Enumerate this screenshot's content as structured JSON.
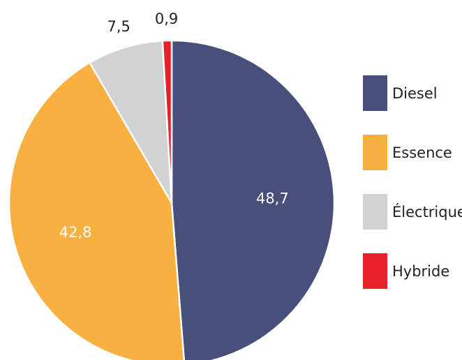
{
  "chart_data": {
    "type": "pie",
    "categories": [
      "Diesel",
      "Essence",
      "Électrique",
      "Hybride"
    ],
    "values": [
      48.7,
      42.8,
      7.5,
      0.9
    ],
    "value_labels": [
      "48,7",
      "42,8",
      "7,5",
      "0,9"
    ],
    "colors": [
      "#474f7a",
      "#f9b040",
      "#d0d2d4",
      "#e8202a"
    ],
    "legend": "right"
  }
}
